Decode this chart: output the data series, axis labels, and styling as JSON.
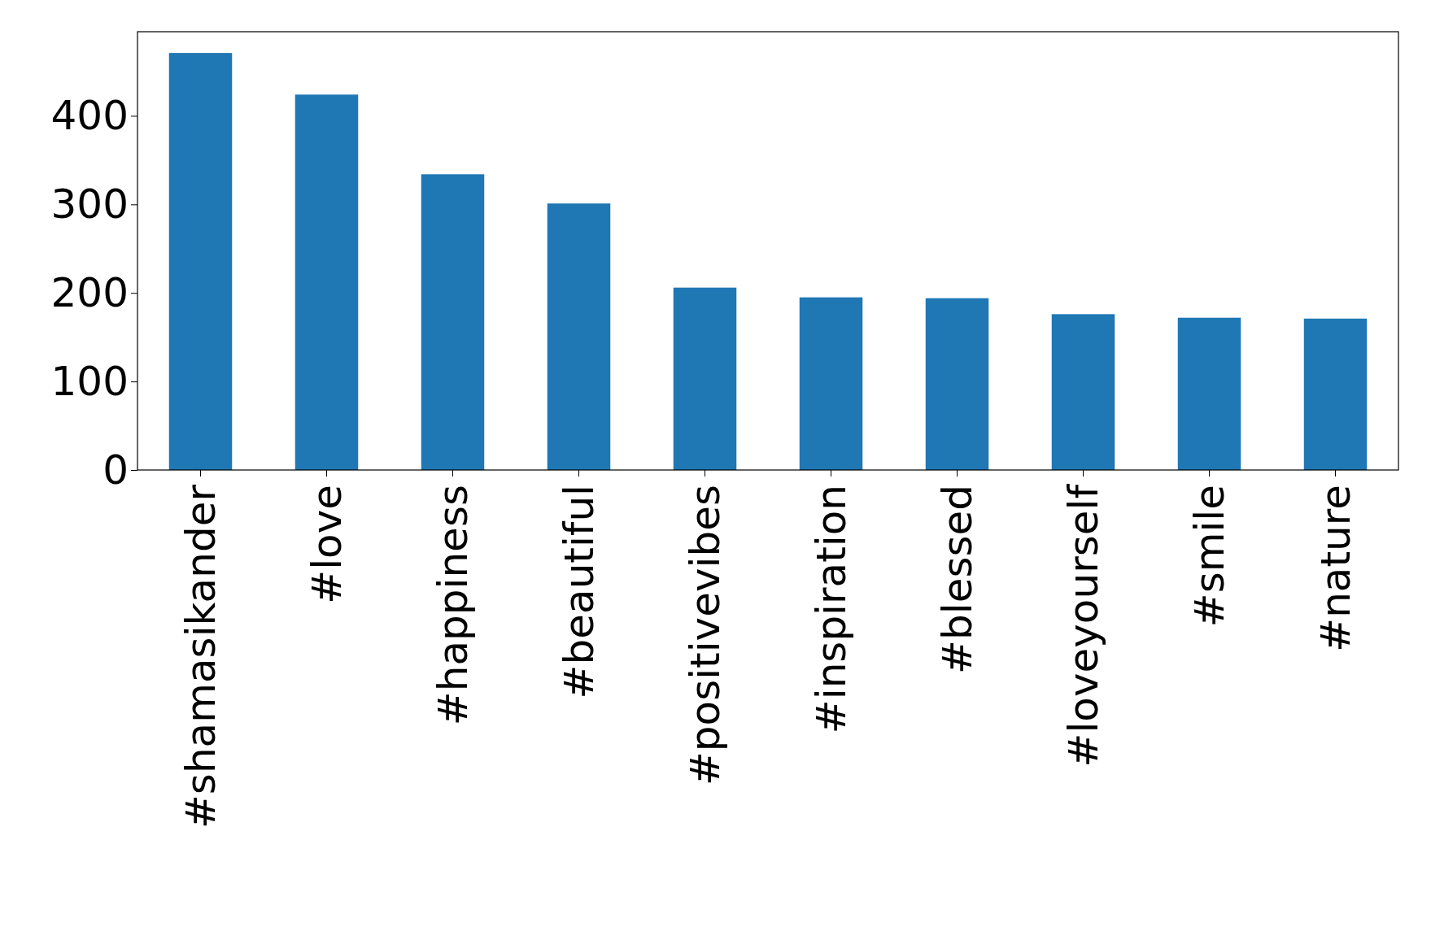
{
  "chart_data": {
    "type": "bar",
    "categories": [
      "#shamasikander",
      "#love",
      "#happiness",
      "#beautiful",
      "#positivevibes",
      "#inspiration",
      "#blessed",
      "#loveyourself",
      "#smile",
      "#nature"
    ],
    "values": [
      471,
      424,
      334,
      301,
      206,
      195,
      194,
      176,
      172,
      171
    ],
    "color": "#1f77b4",
    "ylim": [
      0,
      495
    ],
    "yticks": [
      0,
      100,
      200,
      300,
      400
    ],
    "grid": false
  }
}
